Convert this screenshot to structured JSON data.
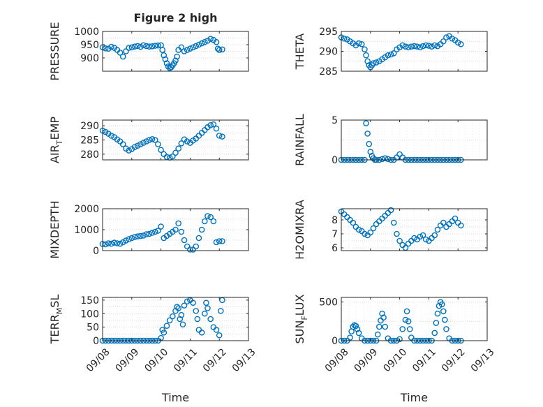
{
  "chart_data": [
    {
      "id": "pressure",
      "type": "scatter",
      "title": "Figure 2 high",
      "ylabel": "PRESSURE",
      "ylabel_sub": "",
      "ylim": [
        850,
        1000
      ],
      "yticks": [
        900,
        950,
        1000
      ],
      "ytick_labels": [
        "900",
        "950",
        "1000"
      ],
      "xlim": [
        0,
        5
      ],
      "xticks": [
        0,
        1,
        2,
        3,
        4,
        5
      ],
      "xtick_labels": [
        "09/08",
        "09/09",
        "09/10",
        "09/11",
        "09/12",
        "09/13"
      ],
      "show_xtick_labels": false,
      "xlabel": "",
      "grid": true,
      "marker": "circle",
      "color": "#0072bd",
      "x": [
        0.0,
        0.1,
        0.2,
        0.3,
        0.4,
        0.5,
        0.6,
        0.7,
        0.8,
        0.9,
        1.0,
        1.1,
        1.2,
        1.3,
        1.4,
        1.5,
        1.6,
        1.7,
        1.8,
        1.9,
        2.0,
        2.05,
        2.1,
        2.15,
        2.2,
        2.25,
        2.3,
        2.35,
        2.4,
        2.45,
        2.5,
        2.55,
        2.6,
        2.7,
        2.8,
        2.9,
        3.0,
        3.1,
        3.2,
        3.3,
        3.4,
        3.5,
        3.6,
        3.7,
        3.8,
        3.9,
        3.95,
        4.0,
        4.1
      ],
      "y": [
        940,
        936,
        935,
        942,
        938,
        930,
        920,
        905,
        925,
        938,
        940,
        943,
        945,
        942,
        948,
        945,
        943,
        944,
        946,
        947,
        948,
        930,
        910,
        895,
        880,
        868,
        862,
        865,
        872,
        880,
        890,
        905,
        930,
        940,
        925,
        930,
        935,
        940,
        945,
        950,
        955,
        960,
        965,
        972,
        968,
        960,
        935,
        930,
        932
      ]
    },
    {
      "id": "theta",
      "type": "scatter",
      "title": "",
      "ylabel": "THETA",
      "ylabel_sub": "",
      "ylim": [
        285,
        295
      ],
      "yticks": [
        285,
        290,
        295
      ],
      "ytick_labels": [
        "285",
        "290",
        "295"
      ],
      "xlim": [
        0,
        5
      ],
      "xticks": [
        0,
        1,
        2,
        3,
        4,
        5
      ],
      "xtick_labels": [
        "09/08",
        "09/09",
        "09/10",
        "09/11",
        "09/12",
        "09/13"
      ],
      "show_xtick_labels": false,
      "xlabel": "",
      "grid": true,
      "marker": "circle",
      "color": "#0072bd",
      "x": [
        0.0,
        0.1,
        0.2,
        0.3,
        0.4,
        0.5,
        0.6,
        0.7,
        0.8,
        0.85,
        0.9,
        0.95,
        1.0,
        1.05,
        1.1,
        1.2,
        1.3,
        1.4,
        1.5,
        1.6,
        1.7,
        1.8,
        1.9,
        2.0,
        2.1,
        2.2,
        2.3,
        2.4,
        2.5,
        2.6,
        2.7,
        2.8,
        2.9,
        3.0,
        3.1,
        3.2,
        3.3,
        3.4,
        3.5,
        3.6,
        3.7,
        3.8,
        3.9,
        4.0,
        4.1
      ],
      "y": [
        293.5,
        293.2,
        293.0,
        292.5,
        292.0,
        291.5,
        292.0,
        291.8,
        290.5,
        289.0,
        287.5,
        286.5,
        286.0,
        286.5,
        287.0,
        287.2,
        287.5,
        288.0,
        288.5,
        289.0,
        289.2,
        289.5,
        290.5,
        291.0,
        291.5,
        291.2,
        291.0,
        291.2,
        291.3,
        291.2,
        291.0,
        291.3,
        291.5,
        291.4,
        291.2,
        291.5,
        291.3,
        291.8,
        292.5,
        293.5,
        293.8,
        293.2,
        292.8,
        292.2,
        291.8
      ]
    },
    {
      "id": "air-temp",
      "type": "scatter",
      "title": "",
      "ylabel": "AIR",
      "ylabel_sub": "T",
      "ylabel_rest": "EMP",
      "ylim": [
        278,
        292
      ],
      "yticks": [
        280,
        285,
        290
      ],
      "ytick_labels": [
        "280",
        "285",
        "290"
      ],
      "xlim": [
        0,
        5
      ],
      "xticks": [
        0,
        1,
        2,
        3,
        4,
        5
      ],
      "xtick_labels": [
        "09/08",
        "09/09",
        "09/10",
        "09/11",
        "09/12",
        "09/13"
      ],
      "show_xtick_labels": false,
      "xlabel": "",
      "grid": true,
      "marker": "circle",
      "color": "#0072bd",
      "x": [
        0.0,
        0.1,
        0.2,
        0.3,
        0.4,
        0.5,
        0.6,
        0.7,
        0.8,
        0.9,
        1.0,
        1.1,
        1.2,
        1.3,
        1.4,
        1.5,
        1.6,
        1.7,
        1.8,
        1.9,
        2.0,
        2.1,
        2.2,
        2.3,
        2.4,
        2.5,
        2.6,
        2.7,
        2.8,
        2.9,
        3.0,
        3.1,
        3.2,
        3.3,
        3.4,
        3.5,
        3.6,
        3.7,
        3.8,
        3.9,
        4.0,
        4.1
      ],
      "y": [
        288.3,
        287.8,
        287.2,
        286.5,
        286.0,
        285.2,
        284.5,
        283.5,
        282.0,
        281.3,
        281.8,
        282.5,
        283.0,
        283.5,
        284.0,
        284.5,
        285.0,
        285.3,
        285.0,
        283.5,
        281.5,
        280.0,
        279.0,
        278.8,
        279.2,
        280.5,
        282.0,
        283.8,
        285.2,
        284.5,
        284.0,
        284.8,
        285.5,
        286.5,
        287.5,
        288.5,
        289.5,
        290.2,
        290.5,
        289.0,
        286.5,
        286.2
      ]
    },
    {
      "id": "rainfall",
      "type": "scatter",
      "title": "",
      "ylabel": "RAINFALL",
      "ylabel_sub": "",
      "ylim": [
        0,
        5
      ],
      "yticks": [
        0,
        5
      ],
      "ytick_labels": [
        "0",
        "5"
      ],
      "xlim": [
        0,
        5
      ],
      "xticks": [
        0,
        1,
        2,
        3,
        4,
        5
      ],
      "xtick_labels": [
        "09/08",
        "09/09",
        "09/10",
        "09/11",
        "09/12",
        "09/13"
      ],
      "show_xtick_labels": false,
      "xlabel": "",
      "grid": true,
      "marker": "circle",
      "color": "#0072bd",
      "x": [
        0.0,
        0.1,
        0.2,
        0.3,
        0.4,
        0.5,
        0.6,
        0.7,
        0.8,
        0.85,
        0.9,
        0.95,
        1.0,
        1.05,
        1.1,
        1.15,
        1.2,
        1.3,
        1.4,
        1.5,
        1.6,
        1.7,
        1.8,
        1.9,
        2.0,
        2.1,
        2.2,
        2.3,
        2.4,
        2.5,
        2.6,
        2.7,
        2.8,
        2.9,
        3.0,
        3.1,
        3.2,
        3.3,
        3.4,
        3.5,
        3.6,
        3.7,
        3.8,
        3.9,
        4.0,
        4.1
      ],
      "y": [
        0,
        0,
        0,
        0,
        0,
        0,
        0,
        0,
        0,
        4.6,
        3.3,
        2.0,
        1.0,
        0.5,
        0.2,
        0,
        0,
        0,
        0.1,
        0.2,
        0.1,
        0,
        0,
        0.3,
        0.7,
        0.3,
        0,
        0,
        0,
        0,
        0,
        0,
        0,
        0,
        0,
        0,
        0,
        0,
        0,
        0,
        0,
        0,
        0,
        0,
        0,
        0
      ]
    },
    {
      "id": "mixdepth",
      "type": "scatter",
      "title": "",
      "ylabel": "MIXDEPTH",
      "ylabel_sub": "",
      "ylim": [
        0,
        2000
      ],
      "yticks": [
        0,
        1000,
        2000
      ],
      "ytick_labels": [
        "0",
        "1000",
        "2000"
      ],
      "xlim": [
        0,
        5
      ],
      "xticks": [
        0,
        1,
        2,
        3,
        4,
        5
      ],
      "xtick_labels": [
        "09/08",
        "09/09",
        "09/10",
        "09/11",
        "09/12",
        "09/13"
      ],
      "show_xtick_labels": false,
      "xlabel": "",
      "grid": true,
      "marker": "circle",
      "color": "#0072bd",
      "x": [
        0.0,
        0.1,
        0.2,
        0.3,
        0.4,
        0.5,
        0.6,
        0.7,
        0.8,
        0.9,
        1.0,
        1.1,
        1.2,
        1.3,
        1.4,
        1.5,
        1.6,
        1.7,
        1.8,
        1.9,
        2.0,
        2.1,
        2.2,
        2.3,
        2.4,
        2.5,
        2.6,
        2.7,
        2.8,
        2.9,
        3.0,
        3.1,
        3.2,
        3.3,
        3.4,
        3.5,
        3.6,
        3.7,
        3.8,
        3.9,
        4.0,
        4.1
      ],
      "y": [
        320,
        300,
        350,
        330,
        380,
        350,
        330,
        400,
        480,
        550,
        600,
        650,
        680,
        700,
        720,
        780,
        800,
        850,
        900,
        950,
        1150,
        600,
        700,
        800,
        900,
        1000,
        1300,
        900,
        500,
        200,
        50,
        50,
        200,
        600,
        1000,
        1400,
        1650,
        1600,
        1400,
        400,
        450,
        450
      ]
    },
    {
      "id": "h2omixra",
      "type": "scatter",
      "title": "",
      "ylabel": "H2OMIXRA",
      "ylabel_sub": "",
      "ylim": [
        5.8,
        8.8
      ],
      "yticks": [
        6,
        7,
        8
      ],
      "ytick_labels": [
        "6",
        "7",
        "8"
      ],
      "xlim": [
        0,
        5
      ],
      "xticks": [
        0,
        1,
        2,
        3,
        4,
        5
      ],
      "xtick_labels": [
        "09/08",
        "09/09",
        "09/10",
        "09/11",
        "09/12",
        "09/13"
      ],
      "show_xtick_labels": false,
      "xlabel": "",
      "grid": true,
      "marker": "circle",
      "color": "#0072bd",
      "x": [
        0.0,
        0.1,
        0.2,
        0.3,
        0.4,
        0.5,
        0.6,
        0.7,
        0.8,
        0.9,
        1.0,
        1.1,
        1.2,
        1.3,
        1.4,
        1.5,
        1.6,
        1.7,
        1.8,
        1.9,
        2.0,
        2.1,
        2.2,
        2.3,
        2.4,
        2.5,
        2.6,
        2.7,
        2.8,
        2.9,
        3.0,
        3.1,
        3.2,
        3.3,
        3.4,
        3.5,
        3.6,
        3.7,
        3.8,
        3.9,
        4.0,
        4.1
      ],
      "y": [
        8.6,
        8.4,
        8.2,
        8.0,
        7.8,
        7.5,
        7.3,
        7.2,
        7.0,
        6.9,
        7.1,
        7.4,
        7.7,
        7.9,
        8.1,
        8.3,
        8.5,
        8.7,
        7.8,
        7.0,
        6.5,
        6.2,
        6.0,
        6.3,
        6.5,
        6.7,
        6.6,
        6.8,
        6.9,
        6.6,
        6.5,
        6.7,
        6.9,
        7.3,
        7.6,
        7.8,
        7.5,
        7.7,
        7.9,
        8.1,
        7.8,
        7.6
      ]
    },
    {
      "id": "terr-msl",
      "type": "scatter",
      "title": "",
      "ylabel": "TERR",
      "ylabel_sub": "M",
      "ylabel_rest": "SL",
      "ylim": [
        0,
        160
      ],
      "yticks": [
        0,
        50,
        100,
        150
      ],
      "ytick_labels": [
        "0",
        "50",
        "100",
        "150"
      ],
      "xlim": [
        0,
        5
      ],
      "xticks": [
        0,
        1,
        2,
        3,
        4,
        5
      ],
      "xtick_labels": [
        "09/08",
        "09/09",
        "09/10",
        "09/11",
        "09/12",
        "09/13"
      ],
      "show_xtick_labels": true,
      "xlabel": "Time",
      "grid": true,
      "marker": "circle",
      "color": "#0072bd",
      "x": [
        0.0,
        0.1,
        0.2,
        0.3,
        0.4,
        0.5,
        0.6,
        0.7,
        0.8,
        0.9,
        1.0,
        1.1,
        1.2,
        1.3,
        1.4,
        1.5,
        1.6,
        1.7,
        1.8,
        1.9,
        2.0,
        2.05,
        2.1,
        2.2,
        2.3,
        2.4,
        2.5,
        2.55,
        2.6,
        2.65,
        2.7,
        2.75,
        2.8,
        2.9,
        3.0,
        3.1,
        3.2,
        3.25,
        3.3,
        3.4,
        3.5,
        3.55,
        3.6,
        3.7,
        3.8,
        3.9,
        4.0,
        4.05,
        4.1
      ],
      "y": [
        0,
        0,
        0,
        0,
        0,
        0,
        0,
        0,
        0,
        0,
        0,
        0,
        0,
        0,
        0,
        0,
        0,
        0,
        0,
        0,
        10,
        40,
        30,
        55,
        75,
        90,
        110,
        125,
        120,
        80,
        95,
        60,
        130,
        145,
        150,
        140,
        110,
        80,
        40,
        30,
        100,
        140,
        120,
        80,
        50,
        40,
        20,
        110,
        150
      ]
    },
    {
      "id": "sun-flux",
      "type": "scatter",
      "title": "",
      "ylabel": "SUN",
      "ylabel_sub": "F",
      "ylabel_rest": "LUX",
      "ylim": [
        0,
        560
      ],
      "yticks": [
        0,
        500
      ],
      "ytick_labels": [
        "0",
        "500"
      ],
      "xlim": [
        0,
        5
      ],
      "xticks": [
        0,
        1,
        2,
        3,
        4,
        5
      ],
      "xtick_labels": [
        "09/08",
        "09/09",
        "09/10",
        "09/11",
        "09/12",
        "09/13"
      ],
      "show_xtick_labels": true,
      "xlabel": "Time",
      "grid": true,
      "marker": "circle",
      "color": "#0072bd",
      "x": [
        0.0,
        0.1,
        0.2,
        0.3,
        0.35,
        0.4,
        0.45,
        0.5,
        0.55,
        0.6,
        0.7,
        0.8,
        0.9,
        1.0,
        1.1,
        1.2,
        1.25,
        1.3,
        1.35,
        1.4,
        1.45,
        1.5,
        1.6,
        1.7,
        1.8,
        1.9,
        2.0,
        2.1,
        2.2,
        2.25,
        2.3,
        2.35,
        2.4,
        2.5,
        2.6,
        2.7,
        2.8,
        2.9,
        3.0,
        3.1,
        3.2,
        3.25,
        3.3,
        3.35,
        3.4,
        3.45,
        3.5,
        3.55,
        3.6,
        3.7,
        3.8,
        3.9,
        4.0,
        4.1
      ],
      "y": [
        0,
        0,
        0,
        40,
        120,
        180,
        200,
        190,
        150,
        100,
        30,
        0,
        0,
        0,
        0,
        0,
        80,
        180,
        260,
        350,
        300,
        180,
        30,
        0,
        0,
        0,
        20,
        150,
        270,
        380,
        250,
        150,
        40,
        0,
        0,
        0,
        0,
        0,
        0,
        0,
        100,
        230,
        350,
        450,
        500,
        470,
        380,
        270,
        150,
        30,
        0,
        0,
        0,
        0
      ]
    }
  ]
}
